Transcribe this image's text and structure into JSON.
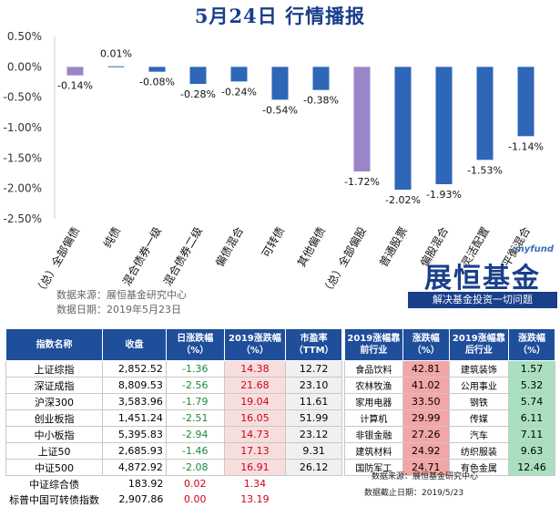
{
  "title": "5月24日   行情播报",
  "chart_data": {
    "type": "bar",
    "categories": [
      "（总）全部偏债",
      "纯债",
      "混合债券一级",
      "混合债券二级",
      "偏债混合",
      "可转债",
      "其他偏债",
      "（总）全部偏股",
      "普通股票",
      "偏股混合",
      "灵活配置",
      "平衡混合"
    ],
    "values": [
      -0.14,
      0.01,
      -0.08,
      -0.28,
      -0.24,
      -0.54,
      -0.38,
      -1.72,
      -2.02,
      -1.93,
      -1.53,
      -1.14
    ],
    "value_labels": [
      "-0.14%",
      "0.01%",
      "-0.08%",
      "-0.28%",
      "-0.24%",
      "-0.54%",
      "-0.38%",
      "-1.72%",
      "-2.02%",
      "-1.93%",
      "-1.53%",
      "-1.14%"
    ],
    "colors": [
      "#9b85c9",
      "#2e66b8",
      "#2e66b8",
      "#2e66b8",
      "#2e66b8",
      "#2e66b8",
      "#2e66b8",
      "#9b85c9",
      "#2e66b8",
      "#2e66b8",
      "#2e66b8",
      "#2e66b8"
    ],
    "ylim": [
      -2.5,
      0.5
    ],
    "yticks": [
      0.5,
      0,
      -0.5,
      -1,
      -1.5,
      -2,
      -2.5
    ],
    "ytick_labels": [
      "0.50%",
      "0.00%",
      "-0.50%",
      "-1.00%",
      "-1.50%",
      "-2.00%",
      "-2.50%"
    ],
    "grid": false
  },
  "source": {
    "line1": "数据来源：展恒基金研究中心",
    "line2": "数据日期：2019年5月23日"
  },
  "logo": {
    "site": "myfund",
    "brand": "展恒基金",
    "slogan": "解决基金投资一切问题"
  },
  "table1": {
    "headers": [
      "指数名称",
      "收盘",
      "日涨跌幅（%）",
      "2019涨跌幅（%）",
      "市盈率（TTM）"
    ],
    "rows": [
      {
        "name": "上证综指",
        "close": "2,852.52",
        "day": "-1.36",
        "ytd": "14.38",
        "pe": "12.72"
      },
      {
        "name": "深证成指",
        "close": "8,809.53",
        "day": "-2.56",
        "ytd": "21.68",
        "pe": "23.10"
      },
      {
        "name": "沪深300",
        "close": "3,583.96",
        "day": "-1.79",
        "ytd": "19.04",
        "pe": "11.61"
      },
      {
        "name": "创业板指",
        "close": "1,451.24",
        "day": "-2.51",
        "ytd": "16.05",
        "pe": "51.99"
      },
      {
        "name": "中小板指",
        "close": "5,395.83",
        "day": "-2.94",
        "ytd": "14.73",
        "pe": "23.12"
      },
      {
        "name": "上证50",
        "close": "2,685.93",
        "day": "-1.46",
        "ytd": "17.13",
        "pe": "9.31"
      },
      {
        "name": "中证500",
        "close": "4,872.92",
        "day": "-2.08",
        "ytd": "16.91",
        "pe": "26.12"
      }
    ],
    "extra_rows": [
      {
        "name": "中证综合债",
        "close": "183.92",
        "day": "0.02",
        "ytd": "1.34"
      },
      {
        "name": "标普中国可转债指数",
        "close": "2,907.86",
        "day": "0.00",
        "ytd": "13.19"
      }
    ]
  },
  "table2": {
    "headers": [
      "2019涨幅靠前行业",
      "涨跌幅（%）",
      "2019涨幅靠后行业",
      "涨跌幅（%）"
    ],
    "rows": [
      {
        "top": "食品饮料",
        "top_pct": "42.81",
        "bottom": "建筑装饰",
        "bottom_pct": "1.57"
      },
      {
        "top": "农林牧渔",
        "top_pct": "41.02",
        "bottom": "公用事业",
        "bottom_pct": "5.32"
      },
      {
        "top": "家用电器",
        "top_pct": "33.50",
        "bottom": "钢铁",
        "bottom_pct": "5.74"
      },
      {
        "top": "计算机",
        "top_pct": "29.99",
        "bottom": "传媒",
        "bottom_pct": "6.11"
      },
      {
        "top": "非银金融",
        "top_pct": "27.26",
        "bottom": "汽车",
        "bottom_pct": "7.11"
      },
      {
        "top": "建筑材料",
        "top_pct": "24.92",
        "bottom": "纺织服装",
        "bottom_pct": "9.63"
      },
      {
        "top": "国防军工",
        "top_pct": "24.71",
        "bottom": "有色金属",
        "bottom_pct": "12.46"
      }
    ]
  },
  "footer": {
    "source": "数据来源：展恒基金研究中心",
    "date": "数据截止日期：2019/5/23"
  }
}
